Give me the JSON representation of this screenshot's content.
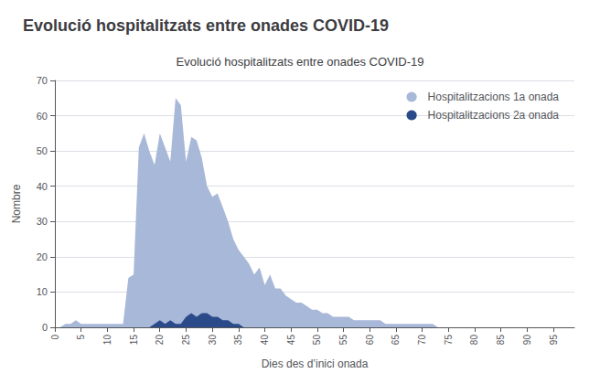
{
  "chart_data": {
    "type": "area",
    "title": "Evolució hospitalitzats entre onades COVID-19",
    "subtitle": "Evolució hospitalitzats entre onades COVID-19",
    "x_label": "Dies des d’inici onada",
    "y_label": "Nombre",
    "x": [
      0,
      1,
      2,
      3,
      4,
      5,
      6,
      7,
      8,
      9,
      10,
      11,
      12,
      13,
      14,
      15,
      16,
      17,
      18,
      19,
      20,
      21,
      22,
      23,
      24,
      25,
      26,
      27,
      28,
      29,
      30,
      31,
      32,
      33,
      34,
      35,
      36,
      37,
      38,
      39,
      40,
      41,
      42,
      43,
      44,
      45,
      46,
      47,
      48,
      49,
      50,
      51,
      52,
      53,
      54,
      55,
      56,
      57,
      58,
      59,
      60,
      61,
      62,
      63,
      64,
      65,
      66,
      67,
      68,
      69,
      70,
      71,
      72,
      73,
      74,
      75,
      76,
      77,
      78,
      79,
      80,
      81,
      82,
      83,
      84,
      85,
      86,
      87,
      88,
      89,
      90,
      91,
      92,
      93,
      94,
      95,
      96,
      97,
      98,
      99
    ],
    "series": [
      {
        "name": "Hospitalitzacions 1a onada",
        "color": "#a8b8d8",
        "values": [
          0,
          0,
          1,
          1,
          2,
          1,
          1,
          1,
          1,
          1,
          1,
          1,
          1,
          1,
          14,
          15,
          51,
          55,
          50,
          46,
          55,
          51,
          47,
          65,
          63,
          47,
          54,
          53,
          48,
          40,
          37,
          38,
          34,
          30,
          25,
          22,
          20,
          18,
          15,
          17,
          12,
          15,
          11,
          11,
          9,
          8,
          7,
          7,
          6,
          5,
          5,
          4,
          4,
          3,
          3,
          3,
          3,
          2,
          2,
          2,
          2,
          2,
          2,
          1,
          1,
          1,
          1,
          1,
          1,
          1,
          1,
          1,
          1,
          0,
          0,
          0,
          0,
          0,
          0,
          0,
          0,
          0,
          0,
          0,
          0,
          0,
          0,
          0,
          0,
          0,
          0,
          0,
          0,
          0,
          0,
          0,
          0,
          0,
          0,
          0
        ]
      },
      {
        "name": "Hospitalitzacions 2a onada",
        "color": "#2a4a8a",
        "values": [
          0,
          0,
          0,
          0,
          0,
          0,
          0,
          0,
          0,
          0,
          0,
          0,
          0,
          0,
          0,
          0,
          0,
          0,
          0,
          1,
          2,
          1,
          2,
          1,
          1,
          3,
          4,
          3,
          4,
          4,
          3,
          3,
          2,
          2,
          1,
          1,
          0,
          0,
          0,
          0,
          0,
          0,
          0,
          0,
          0,
          0,
          0,
          0,
          0,
          0,
          0,
          0,
          0,
          0,
          0,
          0,
          0,
          0,
          0,
          0,
          0,
          0,
          0,
          0,
          0,
          0,
          0,
          0,
          0,
          0,
          0,
          0,
          0,
          0,
          0,
          0,
          0,
          0,
          0,
          0,
          0,
          0,
          0,
          0,
          0,
          0,
          0,
          0,
          0,
          0,
          0,
          0,
          0,
          0,
          0,
          0,
          0,
          0,
          0,
          0
        ]
      }
    ],
    "xlim": [
      0,
      99
    ],
    "xticks": [
      0,
      5,
      10,
      15,
      20,
      25,
      30,
      35,
      40,
      45,
      50,
      55,
      60,
      65,
      70,
      75,
      80,
      85,
      90,
      95
    ],
    "ylim": [
      0,
      70
    ],
    "yticks": [
      0,
      10,
      20,
      30,
      40,
      50,
      60,
      70
    ],
    "grid": true,
    "legend": "upper right"
  }
}
